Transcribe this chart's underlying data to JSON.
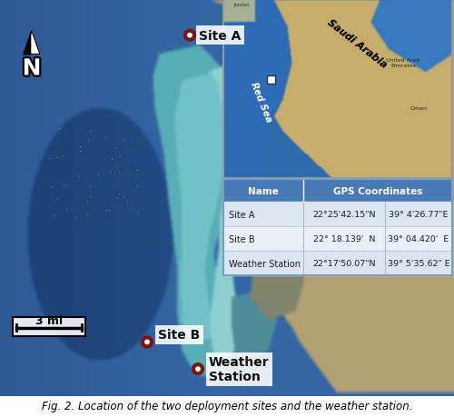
{
  "title": "Fig. 2. Location of the two deployment sites and the weather station.",
  "table_header": [
    "Name",
    "GPS Coordinates"
  ],
  "table_rows": [
    [
      "Site A",
      "22°25'42.15\"N",
      "39° 4'26.77\"E"
    ],
    [
      "Site B",
      "22° 18.139'  N",
      "39° 04.420'  E"
    ],
    [
      "Weather Station",
      "22°17'50.07\"N",
      "39° 5'35.62\" E"
    ]
  ],
  "table_header_bg": "#4a7ab5",
  "table_row_bg1": "#dce6f1",
  "table_row_bg2": "#eaf0f8",
  "table_text_color": "#1a1a2e",
  "table_header_text": "#ffffff",
  "site_a_label": "Site A",
  "site_b_label": "Site B",
  "weather_label": "Weather\nStation",
  "scale_label": "3 mi",
  "north_label": "N",
  "red_dot_color": "#7a1515"
}
